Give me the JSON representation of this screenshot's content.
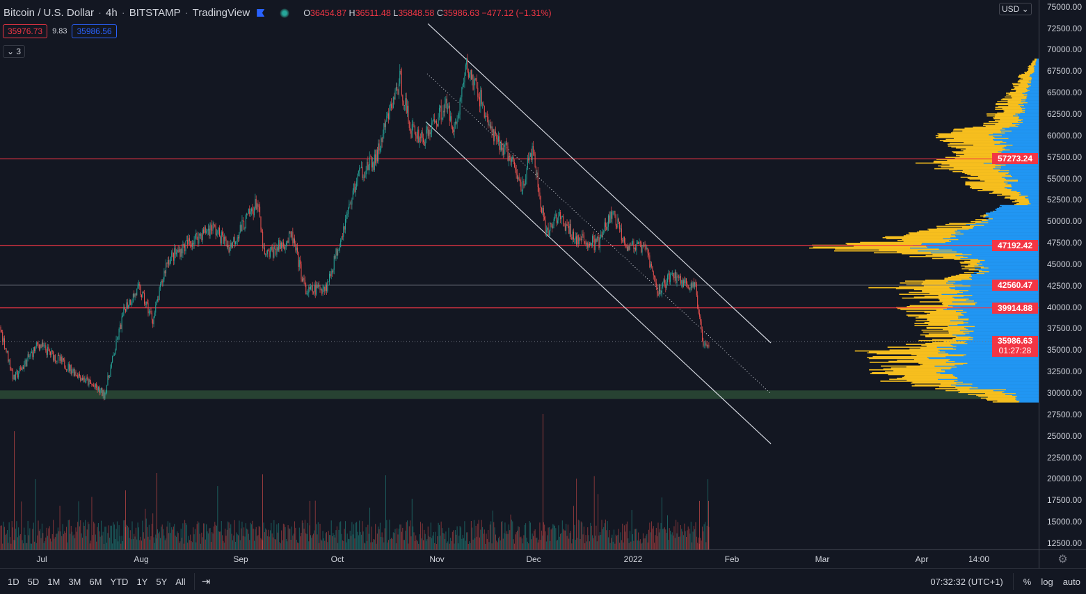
{
  "header": {
    "symbol": "Bitcoin / U.S. Dollar",
    "interval": "4h",
    "exchange": "BITSTAMP",
    "source": "TradingView",
    "ohlc": {
      "o_label": "O",
      "o": "36454.87",
      "h_label": "H",
      "h": "36511.48",
      "l_label": "L",
      "l": "35848.58",
      "c_label": "C",
      "c": "35986.63",
      "change": "−477.12 (−1.31%)"
    }
  },
  "bid": "35976.73",
  "spread": "9.83",
  "ask": "35986.56",
  "indicators_toggle": "3",
  "currency": "USD",
  "price_axis": [
    "75000.00",
    "72500.00",
    "70000.00",
    "67500.00",
    "65000.00",
    "62500.00",
    "60000.00",
    "57500.00",
    "55000.00",
    "52500.00",
    "50000.00",
    "47500.00",
    "45000.00",
    "42500.00",
    "40000.00",
    "37500.00",
    "35000.00",
    "32500.00",
    "30000.00",
    "27500.00",
    "25000.00",
    "22500.00",
    "20000.00",
    "17500.00",
    "15000.00",
    "12500.00"
  ],
  "price_tags": [
    {
      "label": "57273.24",
      "price": 57273.24
    },
    {
      "label": "47192.42",
      "price": 47192.42
    },
    {
      "label": "42560.47",
      "price": 42560.47
    },
    {
      "label": "39914.88",
      "price": 39914.88
    }
  ],
  "last_price": {
    "label": "35986.63",
    "countdown": "01:27:28",
    "price": 35986.63
  },
  "time_axis": [
    "Jul",
    "Aug",
    "Sep",
    "Oct",
    "Nov",
    "Dec",
    "2022",
    "Feb",
    "Mar",
    "Apr",
    "14:00"
  ],
  "ranges": [
    "1D",
    "5D",
    "1M",
    "3M",
    "6M",
    "YTD",
    "1Y",
    "5Y",
    "All"
  ],
  "clock": "07:32:32 (UTC+1)",
  "scale_opts": {
    "percent": "%",
    "log": "log",
    "auto": "auto"
  },
  "colors": {
    "up": "#26a69a",
    "down": "#ef5350",
    "hline": "#f23645",
    "vp_up": "#f7bf1e",
    "vp_down": "#2196f3",
    "support": "#2b4a35"
  },
  "chart_data": {
    "type": "candlestick",
    "title": "Bitcoin / U.S. Dollar 4h",
    "approx_close_path": [
      [
        "Jun 22",
        37700
      ],
      [
        "Jun 26",
        31600
      ],
      [
        "Jul 3",
        35700
      ],
      [
        "Jul 20",
        29800
      ],
      [
        "Jul 27",
        40100
      ],
      [
        "Jul 31",
        42100
      ],
      [
        "Aug 4",
        38500
      ],
      [
        "Aug 8",
        45400
      ],
      [
        "Aug 14",
        47400
      ],
      [
        "Aug 21",
        49400
      ],
      [
        "Aug 26",
        47000
      ],
      [
        "Sep 6",
        52300
      ],
      [
        "Sep 8",
        45800
      ],
      [
        "Sep 16",
        48200
      ],
      [
        "Sep 21",
        41700
      ],
      [
        "Sep 27",
        42500
      ],
      [
        "Oct 1",
        48200
      ],
      [
        "Oct 6",
        55500
      ],
      [
        "Oct 12",
        57100
      ],
      [
        "Oct 16",
        62800
      ],
      [
        "Oct 20",
        66500
      ],
      [
        "Oct 23",
        60800
      ],
      [
        "Oct 28",
        59600
      ],
      [
        "Nov 2",
        63600
      ],
      [
        "Nov 5",
        60800
      ],
      [
        "Nov 9",
        68100
      ],
      [
        "Nov 13",
        64400
      ],
      [
        "Nov 18",
        59600
      ],
      [
        "Nov 22",
        58000
      ],
      [
        "Nov 26",
        53900
      ],
      [
        "Nov 30",
        58400
      ],
      [
        "Dec 4",
        48200
      ],
      [
        "Dec 7",
        50700
      ],
      [
        "Dec 14",
        47800
      ],
      [
        "Dec 20",
        47400
      ],
      [
        "Dec 25",
        51000
      ],
      [
        "Dec 29",
        47400
      ],
      [
        "Jan 4",
        46600
      ],
      [
        "Jan 8",
        41700
      ],
      [
        "Jan 12",
        43800
      ],
      [
        "Jan 19",
        42100
      ],
      [
        "Jan 22",
        36100
      ],
      [
        "Jan 24",
        35986
      ]
    ],
    "horizontal_levels": [
      57273.24,
      47192.42,
      42560.47,
      39914.88
    ],
    "support_zone": [
      29300,
      30300
    ],
    "ylim": [
      10000,
      75000
    ]
  }
}
